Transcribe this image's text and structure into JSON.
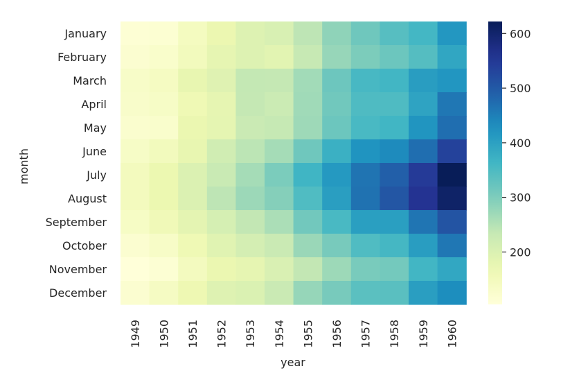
{
  "chart_data": {
    "type": "heatmap",
    "xlabel": "year",
    "ylabel": "month",
    "x_categories": [
      "1949",
      "1950",
      "1951",
      "1952",
      "1953",
      "1954",
      "1955",
      "1956",
      "1957",
      "1958",
      "1959",
      "1960"
    ],
    "y_categories": [
      "January",
      "February",
      "March",
      "April",
      "May",
      "June",
      "July",
      "August",
      "September",
      "October",
      "November",
      "December"
    ],
    "values": [
      [
        112,
        115,
        145,
        171,
        196,
        204,
        242,
        284,
        315,
        340,
        360,
        417
      ],
      [
        118,
        126,
        150,
        180,
        196,
        188,
        233,
        277,
        301,
        318,
        342,
        391
      ],
      [
        132,
        141,
        178,
        193,
        236,
        235,
        267,
        317,
        356,
        362,
        406,
        419
      ],
      [
        129,
        135,
        163,
        181,
        235,
        227,
        269,
        313,
        348,
        348,
        396,
        461
      ],
      [
        121,
        125,
        172,
        183,
        229,
        234,
        270,
        318,
        355,
        363,
        420,
        472
      ],
      [
        135,
        149,
        178,
        218,
        243,
        264,
        315,
        374,
        422,
        435,
        472,
        535
      ],
      [
        148,
        170,
        199,
        230,
        264,
        302,
        364,
        413,
        465,
        491,
        548,
        622
      ],
      [
        148,
        170,
        199,
        242,
        272,
        293,
        347,
        405,
        467,
        505,
        559,
        606
      ],
      [
        136,
        158,
        184,
        209,
        237,
        259,
        312,
        355,
        404,
        404,
        463,
        508
      ],
      [
        119,
        133,
        162,
        191,
        211,
        229,
        274,
        306,
        347,
        359,
        407,
        461
      ],
      [
        104,
        114,
        146,
        172,
        180,
        203,
        237,
        271,
        305,
        310,
        362,
        390
      ],
      [
        118,
        140,
        166,
        194,
        201,
        229,
        278,
        306,
        336,
        337,
        405,
        432
      ]
    ],
    "colormap": "YlGnBu",
    "colorbar": {
      "min": 104,
      "max": 622,
      "ticks": [
        200,
        300,
        400,
        500,
        600
      ]
    }
  }
}
